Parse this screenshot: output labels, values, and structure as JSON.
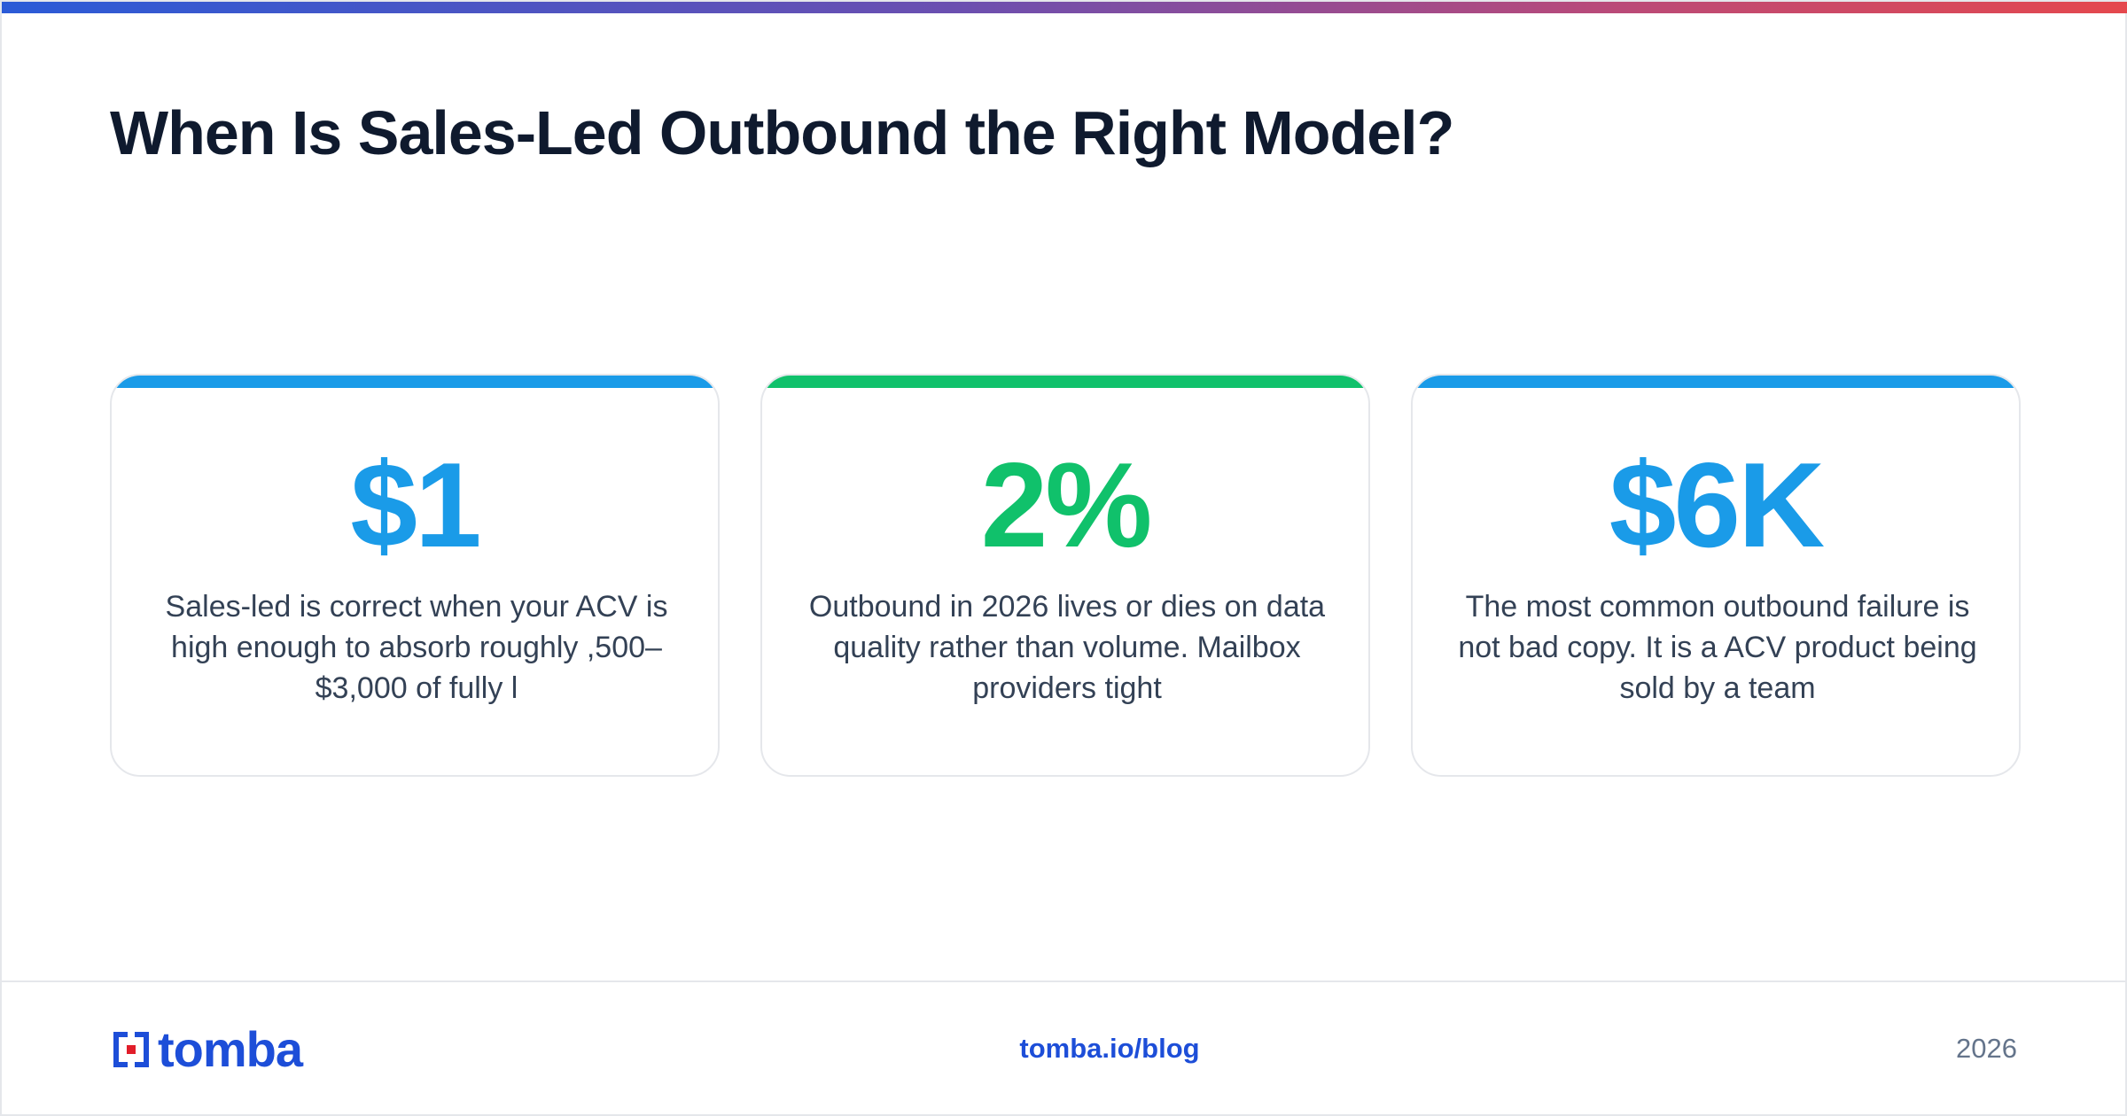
{
  "title": "When Is Sales-Led Outbound the Right Model?",
  "cards": [
    {
      "stat": "$1",
      "text": "Sales-led is correct when your ACV is high enough to absorb roughly ,500–$3,000 of fully l",
      "accent_color": "#1a9be8",
      "stat_color": "#1a9be8"
    },
    {
      "stat": "2%",
      "text": "Outbound in 2026 lives or dies on data quality rather than volume. Mailbox providers tight",
      "accent_color": "#10c16b",
      "stat_color": "#10c16b"
    },
    {
      "stat": "$6K",
      "text": "The most common outbound failure is not bad copy. It is a ACV product being sold by a team",
      "accent_color": "#1a9be8",
      "stat_color": "#1a9be8"
    }
  ],
  "footer": {
    "logo_text": "tomba",
    "logo_icon": "tomba-logo-icon",
    "link": "tomba.io/blog",
    "year": "2026"
  },
  "colors": {
    "brand_blue": "#1d4ed8",
    "brand_red": "#e11d2a"
  }
}
